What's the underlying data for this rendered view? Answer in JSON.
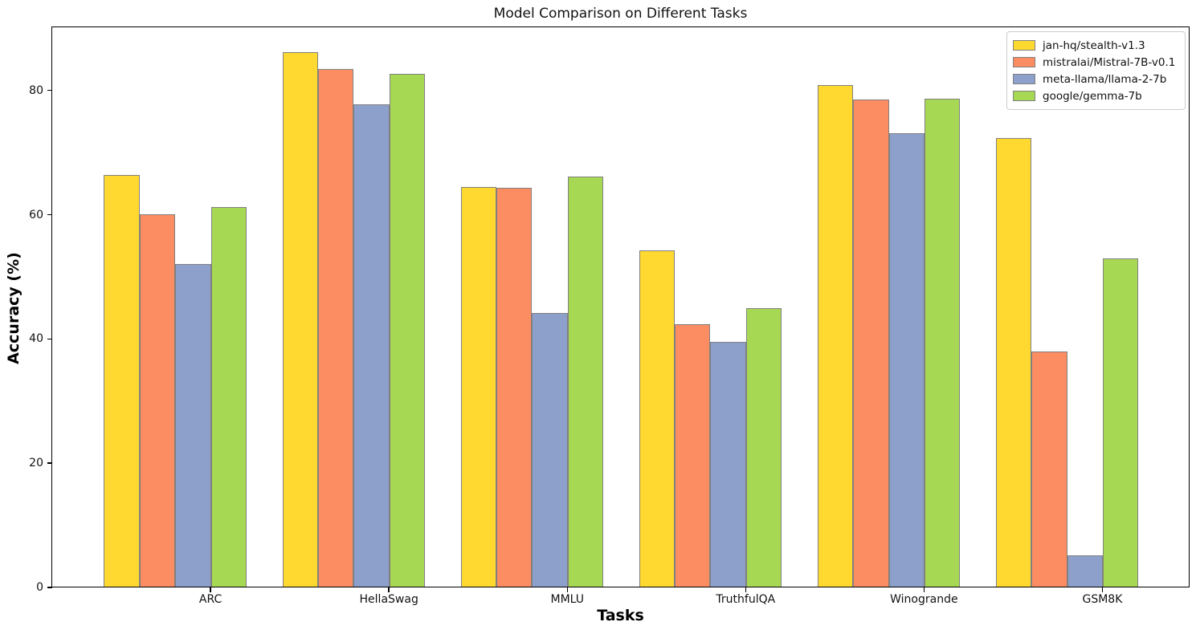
{
  "chart_data": {
    "type": "bar",
    "title": "Model Comparison on Different Tasks",
    "xlabel": "Tasks",
    "ylabel": "Accuracy (%)",
    "categories": [
      "ARC",
      "HellaSwag",
      "MMLU",
      "TruthfulQA",
      "Winogrande",
      "GSM8K"
    ],
    "series": [
      {
        "name": "jan-hq/stealth-v1.3",
        "color": "#FFD92F",
        "values": [
          66.3,
          86.0,
          64.3,
          54.1,
          80.7,
          72.2
        ]
      },
      {
        "name": "mistralai/Mistral-7B-v0.1",
        "color": "#FC8D62",
        "values": [
          60.0,
          83.3,
          64.2,
          42.2,
          78.4,
          37.8
        ]
      },
      {
        "name": "meta-llama/llama-2-7b",
        "color": "#8DA0CB",
        "values": [
          52.0,
          77.6,
          44.0,
          39.4,
          73.0,
          5.0
        ]
      },
      {
        "name": "google/gemma-7b",
        "color": "#A6D854",
        "values": [
          61.1,
          82.5,
          66.0,
          44.8,
          78.5,
          52.8
        ]
      }
    ],
    "yticks": [
      0,
      20,
      40,
      60,
      80
    ],
    "ylim": [
      0,
      90.3
    ],
    "grid": false,
    "legend_position": "upper right",
    "bar_edge_color": "#808080",
    "background_color": "#ffffff"
  }
}
